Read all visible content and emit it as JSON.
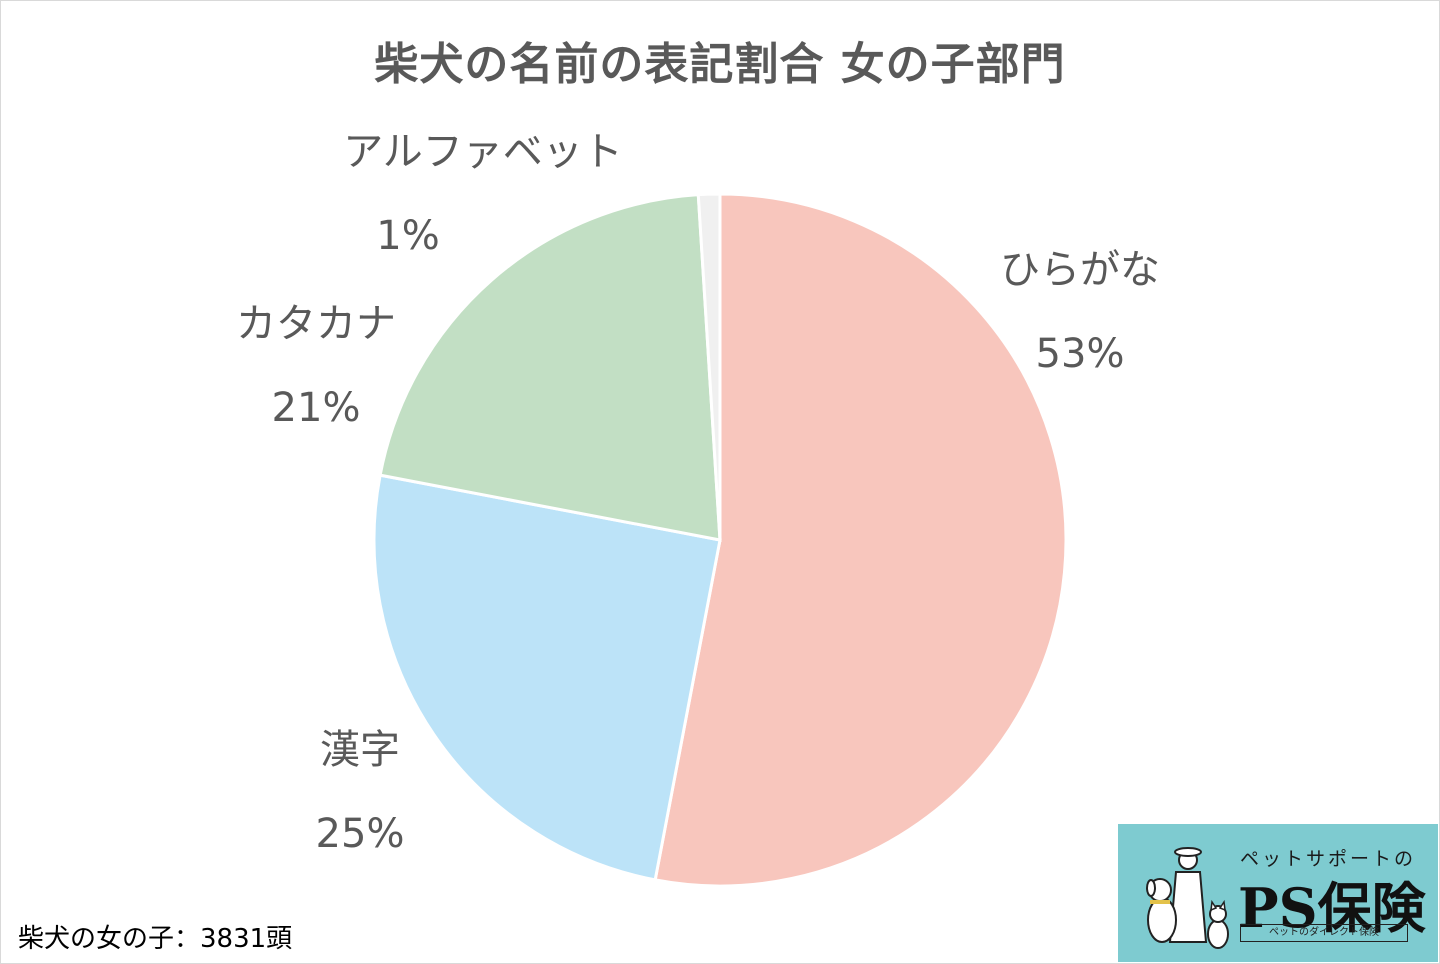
{
  "chart_data": {
    "type": "pie",
    "title": "柴犬の名前の表記割合 女の子部門",
    "start_angle_deg": 0,
    "direction": "clockwise",
    "slices": [
      {
        "label": "ひらがな",
        "value": 53,
        "value_label": "53%",
        "color": "#f8c6bd"
      },
      {
        "label": "漢字",
        "value": 25,
        "value_label": "25%",
        "color": "#bce3f8"
      },
      {
        "label": "カタカナ",
        "value": 21,
        "value_label": "21%",
        "color": "#c2dfc4"
      },
      {
        "label": "アルファベット",
        "value": 1,
        "value_label": "1%",
        "color": "#f0f0f0"
      }
    ]
  },
  "footnote": "柴犬の女の子：3831頭",
  "logo": {
    "tagline": "ペットサポートの",
    "brand": "PS保険",
    "subline": "ペットのダイレクト保険"
  }
}
